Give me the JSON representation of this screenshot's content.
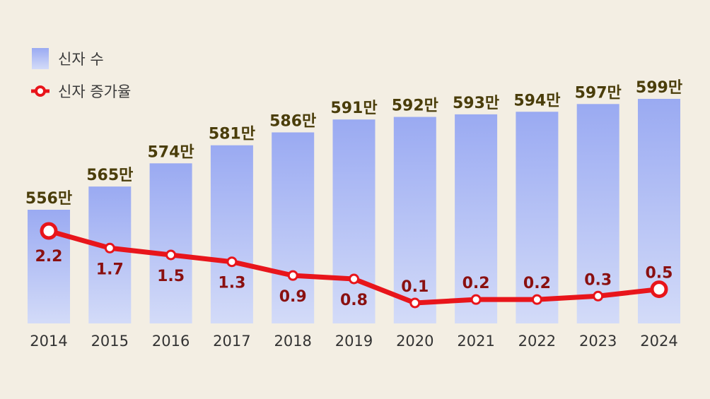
{
  "legend": {
    "bars_label": "신자 수",
    "line_label": "신자 증가율"
  },
  "colors": {
    "background": "#f3eee3",
    "bar_top": "#9aaaf2",
    "bar_bottom": "#d3dbf8",
    "line": "#e8151b",
    "bar_label": "#4a3d0a",
    "rate_label": "#8a1010"
  },
  "chart_data": {
    "type": "bar",
    "categories": [
      "2014",
      "2015",
      "2016",
      "2017",
      "2018",
      "2019",
      "2020",
      "2021",
      "2022",
      "2023",
      "2024"
    ],
    "series": [
      {
        "name": "신자 수",
        "type": "bar",
        "values": [
          556,
          565,
          574,
          581,
          586,
          591,
          592,
          593,
          594,
          597,
          599
        ],
        "labels": [
          "556만",
          "565만",
          "574만",
          "581만",
          "586만",
          "591만",
          "592만",
          "593만",
          "594만",
          "597만",
          "599만"
        ]
      },
      {
        "name": "신자 증가율",
        "type": "line",
        "values": [
          2.2,
          1.7,
          1.5,
          1.3,
          0.9,
          0.8,
          0.1,
          0.2,
          0.2,
          0.3,
          0.5
        ],
        "labels": [
          "2.2",
          "1.7",
          "1.5",
          "1.3",
          "0.9",
          "0.8",
          "0.1",
          "0.2",
          "0.2",
          "0.3",
          "0.5"
        ]
      }
    ],
    "title": "",
    "xlabel": "",
    "ylabel": "",
    "legend_position": "top-left",
    "grid": false
  }
}
